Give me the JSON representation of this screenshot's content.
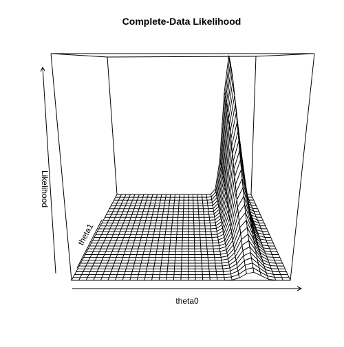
{
  "chart_data": {
    "type": "surface",
    "title": "Complete-Data Likelihood",
    "xlabel": "theta0",
    "ylabel": "theta1",
    "zlabel": "Likelihood",
    "grid_resolution": 30,
    "peak": {
      "theta0_fraction": 0.83,
      "theta1_fraction": 1.0
    },
    "ticks_shown": false,
    "box": true,
    "line_color": "#000000",
    "fill_color": "#ffffff"
  }
}
